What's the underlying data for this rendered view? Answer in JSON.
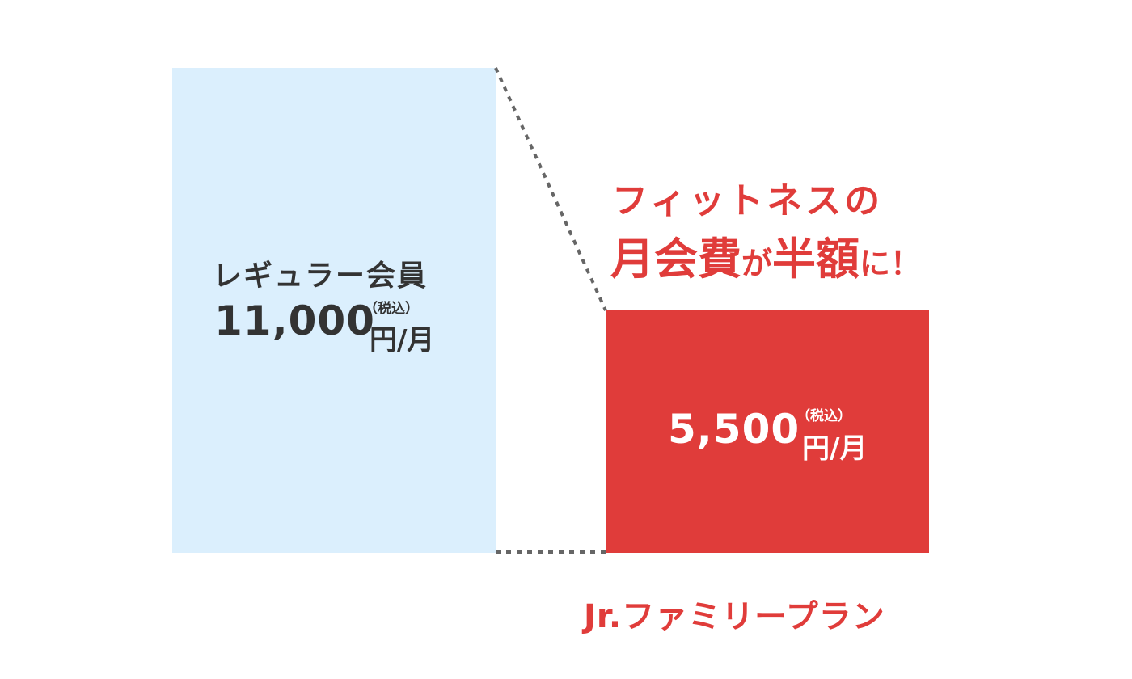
{
  "chart_data": {
    "type": "bar",
    "categories": [
      "レギュラー会員",
      "Jr.ファミリープラン"
    ],
    "values": [
      11000,
      5500
    ],
    "ylim": [
      0,
      11000
    ],
    "grid": false,
    "colors": {
      "regular": "#dbeffd",
      "plan": "#e03c3a",
      "text_dark": "#333333",
      "accent": "#e03c3a",
      "connector": "#666666"
    },
    "labels": {
      "regular_name": "レギュラー会員",
      "regular_price": "11,000",
      "plan_price": "5,500",
      "tax_note": "（税込）",
      "unit": "円/月",
      "plan_name": "Jr.ファミリープラン"
    },
    "annotation": {
      "line1": "フィットネスの",
      "line2_a": "月会費",
      "line2_b": "が",
      "line2_c": "半額",
      "line2_d": "に！"
    }
  }
}
